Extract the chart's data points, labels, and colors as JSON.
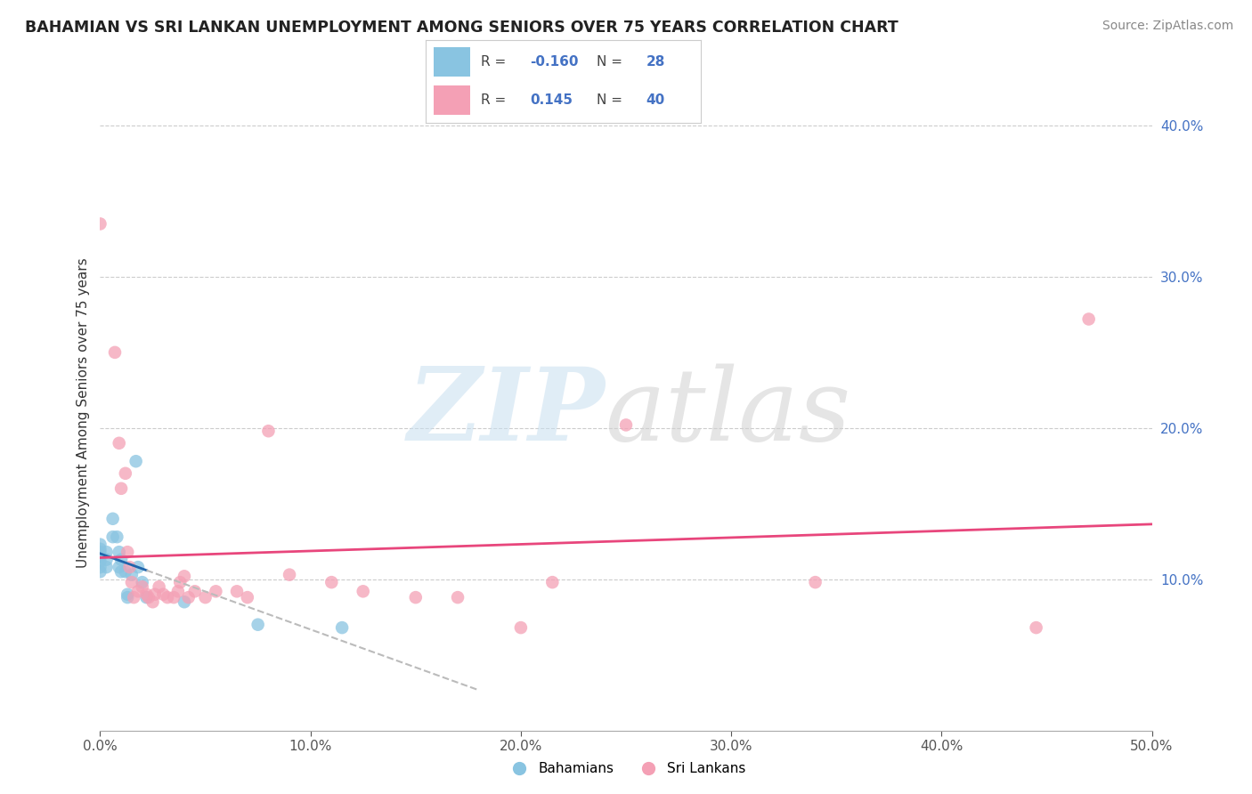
{
  "title": "BAHAMIAN VS SRI LANKAN UNEMPLOYMENT AMONG SENIORS OVER 75 YEARS CORRELATION CHART",
  "source": "Source: ZipAtlas.com",
  "ylabel": "Unemployment Among Seniors over 75 years",
  "xlim": [
    0.0,
    0.5
  ],
  "ylim": [
    0.0,
    0.42
  ],
  "xtick_vals": [
    0.0,
    0.1,
    0.2,
    0.3,
    0.4,
    0.5
  ],
  "xtick_labels": [
    "0.0%",
    "10.0%",
    "20.0%",
    "30.0%",
    "40.0%",
    "50.0%"
  ],
  "ytick_vals": [
    0.1,
    0.2,
    0.3,
    0.4
  ],
  "ytick_labels": [
    "10.0%",
    "20.0%",
    "30.0%",
    "40.0%"
  ],
  "legend_r_blue": "-0.160",
  "legend_n_blue": "28",
  "legend_r_pink": "0.145",
  "legend_n_pink": "40",
  "blue_color": "#89c4e1",
  "pink_color": "#f4a0b5",
  "blue_line_color": "#2166ac",
  "pink_line_color": "#e8467c",
  "blue_scatter_x": [
    0.0,
    0.0,
    0.0,
    0.0,
    0.0,
    0.0,
    0.0,
    0.003,
    0.003,
    0.003,
    0.006,
    0.006,
    0.008,
    0.009,
    0.009,
    0.01,
    0.01,
    0.012,
    0.013,
    0.013,
    0.015,
    0.017,
    0.018,
    0.02,
    0.022,
    0.04,
    0.075,
    0.115
  ],
  "blue_scatter_y": [
    0.115,
    0.118,
    0.12,
    0.123,
    0.112,
    0.108,
    0.105,
    0.118,
    0.113,
    0.108,
    0.14,
    0.128,
    0.128,
    0.118,
    0.108,
    0.105,
    0.113,
    0.105,
    0.09,
    0.088,
    0.103,
    0.178,
    0.108,
    0.098,
    0.088,
    0.085,
    0.07,
    0.068
  ],
  "pink_scatter_x": [
    0.0,
    0.007,
    0.009,
    0.01,
    0.012,
    0.013,
    0.014,
    0.015,
    0.016,
    0.018,
    0.02,
    0.022,
    0.023,
    0.025,
    0.026,
    0.028,
    0.03,
    0.032,
    0.035,
    0.037,
    0.038,
    0.04,
    0.042,
    0.045,
    0.05,
    0.055,
    0.065,
    0.07,
    0.08,
    0.09,
    0.11,
    0.125,
    0.15,
    0.17,
    0.2,
    0.215,
    0.25,
    0.34,
    0.445,
    0.47
  ],
  "pink_scatter_y": [
    0.335,
    0.25,
    0.19,
    0.16,
    0.17,
    0.118,
    0.108,
    0.098,
    0.088,
    0.092,
    0.095,
    0.09,
    0.088,
    0.085,
    0.09,
    0.095,
    0.09,
    0.088,
    0.088,
    0.092,
    0.098,
    0.102,
    0.088,
    0.092,
    0.088,
    0.092,
    0.092,
    0.088,
    0.198,
    0.103,
    0.098,
    0.092,
    0.088,
    0.088,
    0.068,
    0.098,
    0.202,
    0.098,
    0.068,
    0.272
  ],
  "background_color": "#ffffff",
  "grid_color": "#cccccc",
  "tick_color": "#555555",
  "ytick_color": "#4472c4"
}
